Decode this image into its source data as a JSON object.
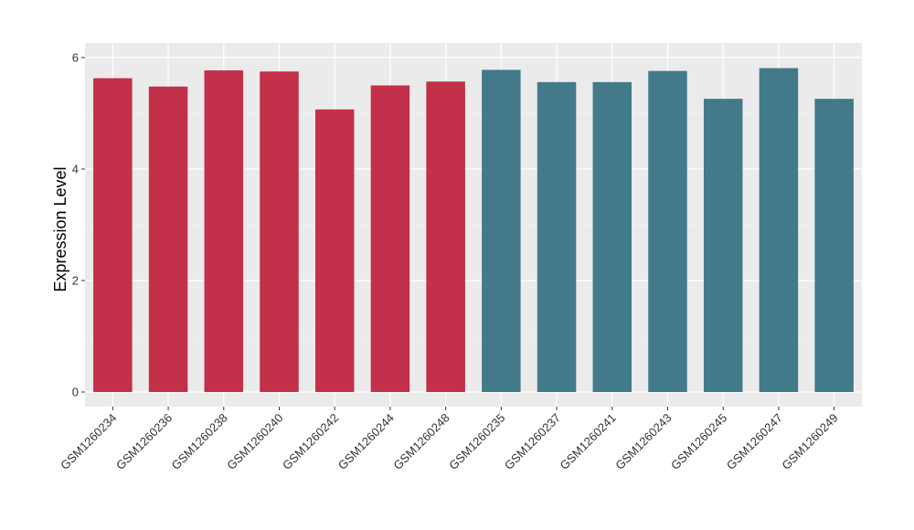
{
  "chart_data": {
    "type": "bar",
    "title": "",
    "xlabel": "",
    "ylabel": "Expression Level",
    "ylim": [
      0,
      6
    ],
    "yticks": [
      0,
      2,
      4,
      6
    ],
    "ytick_labels": [
      "0",
      "2",
      "4",
      "6"
    ],
    "grid": true,
    "legend": "none",
    "categories": [
      "GSM1260234",
      "GSM1260236",
      "GSM1260238",
      "GSM1260240",
      "GSM1260242",
      "GSM1260244",
      "GSM1260248",
      "GSM1260235",
      "GSM1260237",
      "GSM1260241",
      "GSM1260243",
      "GSM1260245",
      "GSM1260247",
      "GSM1260249"
    ],
    "values": [
      5.63,
      5.48,
      5.77,
      5.75,
      5.07,
      5.5,
      5.57,
      5.78,
      5.56,
      5.56,
      5.76,
      5.26,
      5.81,
      5.26
    ],
    "groups": [
      0,
      0,
      0,
      0,
      0,
      0,
      0,
      1,
      1,
      1,
      1,
      1,
      1,
      1
    ],
    "colors": {
      "group_0": "#c33049",
      "group_1": "#427a8a",
      "panel_background": "#ebebeb",
      "grid_major": "#ffffff",
      "grid_minor": "#f5f5f5"
    }
  }
}
